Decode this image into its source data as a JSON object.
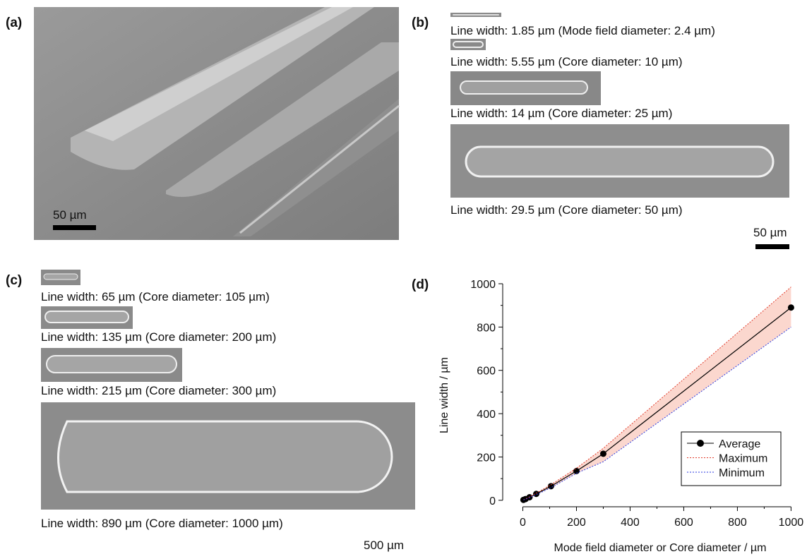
{
  "panels": {
    "a": {
      "label": "(a)",
      "scale_bar": "50 µm"
    },
    "b": {
      "label": "(b)",
      "captions": [
        "Line width: 1.85 µm (Mode field diameter: 2.4 µm)",
        "Line width: 5.55 µm (Core diameter: 10 µm)",
        "Line width: 14 µm (Core diameter: 25 µm)",
        "Line width: 29.5 µm (Core diameter: 50 µm)"
      ],
      "scale_bar": "50 µm"
    },
    "c": {
      "label": "(c)",
      "captions": [
        "Line width: 65 µm (Core diameter: 105 µm)",
        "Line width: 135 µm (Core diameter: 200 µm)",
        "Line width: 215 µm (Core diameter: 300 µm)",
        "Line width: 890 µm (Core diameter: 1000 µm)"
      ],
      "scale_bar": "500 µm"
    },
    "d": {
      "label": "(d)"
    }
  },
  "chart_data": {
    "type": "line",
    "xlabel": "Mode field diameter or Core diameter /  µm",
    "ylabel": "Line width / µm",
    "x": [
      2.4,
      10,
      25,
      50,
      105,
      200,
      300,
      1000
    ],
    "series": [
      {
        "name": "Average",
        "color": "#000000",
        "values": [
          1.85,
          5.55,
          14,
          29.5,
          65,
          135,
          215,
          890
        ]
      },
      {
        "name": "Maximum",
        "color": "#e03a2a",
        "values": [
          2.2,
          6.5,
          16,
          33,
          72,
          148,
          240,
          985
        ]
      },
      {
        "name": "Minimum",
        "color": "#2a3ae0",
        "values": [
          1.5,
          4.6,
          12,
          26,
          58,
          125,
          178,
          800
        ]
      }
    ],
    "band_color": "#f9c9bd",
    "xlim": [
      -75,
      1020
    ],
    "ylim": [
      -30,
      1000
    ],
    "xticks": [
      0,
      200,
      400,
      600,
      800,
      1000
    ],
    "yticks": [
      0,
      200,
      400,
      600,
      800,
      1000
    ],
    "legend": "lower right"
  }
}
